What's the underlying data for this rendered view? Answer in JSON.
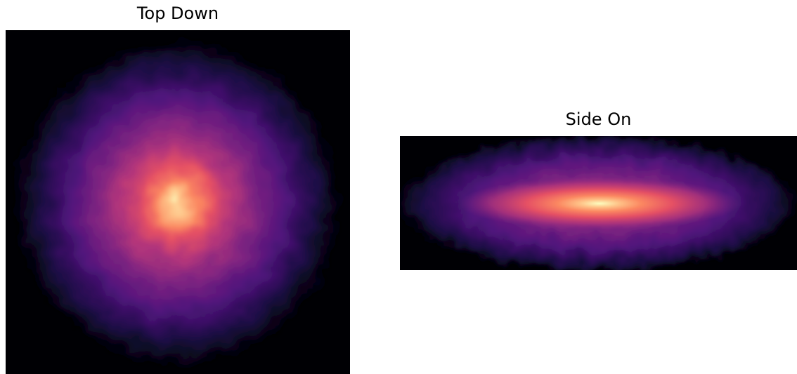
{
  "figure": {
    "panels": [
      {
        "id": "top",
        "title": "Top Down",
        "view": "face-on density projection",
        "colormap": "magma"
      },
      {
        "id": "side",
        "title": "Side On",
        "view": "edge-on density projection",
        "colormap": "magma"
      }
    ]
  },
  "colors": {
    "background": "#ffffff",
    "panel_background": "#000004",
    "magma_stops": [
      "#000004",
      "#1c1044",
      "#4f127b",
      "#812581",
      "#b5367a",
      "#e55064",
      "#fb8761",
      "#fec287",
      "#fcfdbf"
    ]
  }
}
